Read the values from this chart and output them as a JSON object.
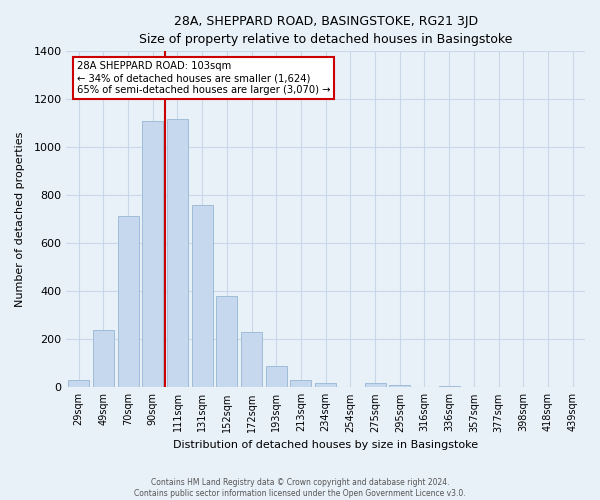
{
  "title": "28A, SHEPPARD ROAD, BASINGSTOKE, RG21 3JD",
  "subtitle": "Size of property relative to detached houses in Basingstoke",
  "xlabel": "Distribution of detached houses by size in Basingstoke",
  "ylabel": "Number of detached properties",
  "bar_labels": [
    "29sqm",
    "49sqm",
    "70sqm",
    "90sqm",
    "111sqm",
    "131sqm",
    "152sqm",
    "172sqm",
    "193sqm",
    "213sqm",
    "234sqm",
    "254sqm",
    "275sqm",
    "295sqm",
    "316sqm",
    "336sqm",
    "357sqm",
    "377sqm",
    "398sqm",
    "418sqm",
    "439sqm"
  ],
  "bar_values": [
    30,
    240,
    715,
    1110,
    1120,
    760,
    380,
    230,
    90,
    30,
    20,
    0,
    20,
    10,
    0,
    5,
    0,
    0,
    0,
    0,
    0
  ],
  "bar_color": "#c5d8ee",
  "bar_edge_color": "#a0bcd8",
  "highlight_color": "#cc0000",
  "vline_index": 3.5,
  "ylim": [
    0,
    1400
  ],
  "yticks": [
    0,
    200,
    400,
    600,
    800,
    1000,
    1200,
    1400
  ],
  "annotation_title": "28A SHEPPARD ROAD: 103sqm",
  "annotation_line1": "← 34% of detached houses are smaller (1,624)",
  "annotation_line2": "65% of semi-detached houses are larger (3,070) →",
  "annotation_box_color": "#ffffff",
  "annotation_box_edge": "#cc0000",
  "footer1": "Contains HM Land Registry data © Crown copyright and database right 2024.",
  "footer2": "Contains public sector information licensed under the Open Government Licence v3.0.",
  "grid_color": "#c8d8e8",
  "background_color": "#e8f0f8"
}
